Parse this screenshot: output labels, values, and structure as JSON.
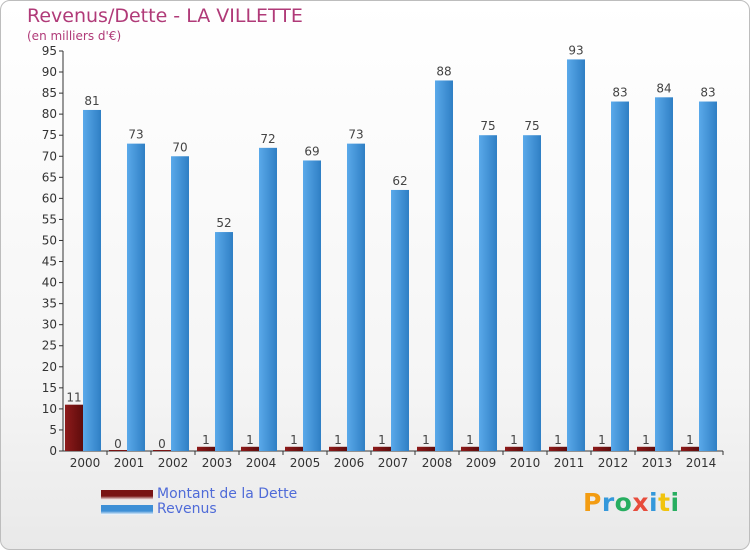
{
  "title": "Revenus/Dette - LA VILLETTE",
  "subtitle": "(en milliers d'€)",
  "logo": {
    "text": "Proxiti",
    "letters": [
      {
        "ch": "P",
        "color": "#f39c12"
      },
      {
        "ch": "r",
        "color": "#3498db"
      },
      {
        "ch": "o",
        "color": "#27ae60"
      },
      {
        "ch": "x",
        "color": "#e74c3c"
      },
      {
        "ch": "i",
        "color": "#3498db"
      },
      {
        "ch": "t",
        "color": "#f1c40f"
      },
      {
        "ch": "i",
        "color": "#27ae60"
      }
    ]
  },
  "colors": {
    "debt": "#7a1414",
    "revenue": "#3d8fd6",
    "axis": "#333333",
    "grid": "#cfcfcf"
  },
  "chart_data": {
    "type": "bar",
    "categories": [
      "2000",
      "2001",
      "2002",
      "2003",
      "2004",
      "2005",
      "2006",
      "2007",
      "2008",
      "2009",
      "2010",
      "2011",
      "2012",
      "2013",
      "2014"
    ],
    "series": [
      {
        "name": "Montant de la Dette",
        "color": "#7a1414",
        "values": [
          11,
          0,
          0,
          1,
          1,
          1,
          1,
          1,
          1,
          1,
          1,
          1,
          1,
          1,
          1
        ]
      },
      {
        "name": "Revenus",
        "color": "#3d8fd6",
        "values": [
          81,
          73,
          70,
          52,
          72,
          69,
          73,
          62,
          88,
          75,
          75,
          93,
          83,
          84,
          83
        ]
      }
    ],
    "ylim": [
      0,
      95
    ],
    "yticks": [
      0,
      5,
      10,
      15,
      20,
      25,
      30,
      35,
      40,
      45,
      50,
      55,
      60,
      65,
      70,
      75,
      80,
      85,
      90,
      95
    ],
    "grid": false,
    "legend": "bottom-left"
  }
}
